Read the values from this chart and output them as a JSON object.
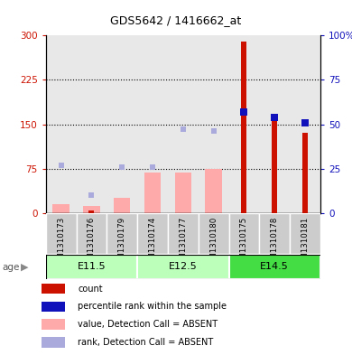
{
  "title": "GDS5642 / 1416662_at",
  "samples": [
    "GSM1310173",
    "GSM1310176",
    "GSM1310179",
    "GSM1310174",
    "GSM1310177",
    "GSM1310180",
    "GSM1310175",
    "GSM1310178",
    "GSM1310181"
  ],
  "age_groups": [
    {
      "label": "E11.5",
      "start": 0,
      "end": 3
    },
    {
      "label": "E12.5",
      "start": 3,
      "end": 6
    },
    {
      "label": "E14.5",
      "start": 6,
      "end": 9
    }
  ],
  "count_values": [
    0,
    5,
    0,
    0,
    0,
    0,
    290,
    155,
    135
  ],
  "percentile_rank": [
    null,
    null,
    null,
    null,
    null,
    null,
    57,
    54,
    51
  ],
  "absent_value": [
    15,
    12,
    25,
    68,
    68,
    75,
    null,
    null,
    null
  ],
  "absent_rank": [
    27,
    10,
    26,
    26,
    47,
    46,
    null,
    null,
    null
  ],
  "ylim_left": [
    0,
    300
  ],
  "ylim_right": [
    0,
    100
  ],
  "yticks_left": [
    0,
    75,
    150,
    225,
    300
  ],
  "yticks_right": [
    0,
    25,
    50,
    75,
    100
  ],
  "ytick_labels_left": [
    "0",
    "75",
    "150",
    "225",
    "300"
  ],
  "ytick_labels_right": [
    "0",
    "25",
    "50",
    "75",
    "100%"
  ],
  "color_count": "#cc1100",
  "color_rank": "#1111bb",
  "color_absent_value": "#ffaaaa",
  "color_absent_rank": "#aaaadd",
  "color_age_light": "#bbffbb",
  "color_age_dark": "#44dd44",
  "color_age_border": "#ffffff",
  "legend_items": [
    {
      "color": "#cc1100",
      "label": "count"
    },
    {
      "color": "#1111bb",
      "label": "percentile rank within the sample"
    },
    {
      "color": "#ffaaaa",
      "label": "value, Detection Call = ABSENT"
    },
    {
      "color": "#aaaadd",
      "label": "rank, Detection Call = ABSENT"
    }
  ]
}
